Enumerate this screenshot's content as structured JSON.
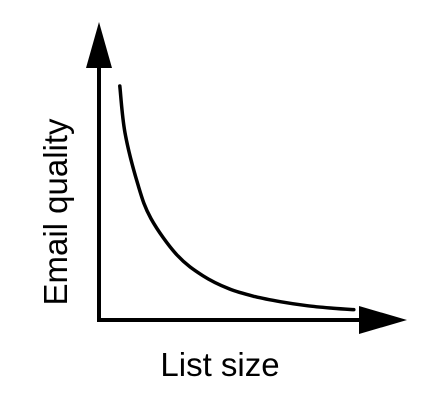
{
  "chart_data": {
    "type": "line",
    "title": "",
    "xlabel": "List size",
    "ylabel": "Email quality",
    "grid": false,
    "xlim": [
      0,
      10
    ],
    "ylim": [
      0,
      10
    ],
    "series": [
      {
        "x": [
          0.8,
          1.0,
          1.5,
          2.0,
          3.0,
          4.0,
          5.0,
          6.0,
          7.0,
          8.0,
          9.0,
          9.8
        ],
        "values": [
          9.0,
          7.2,
          5.2,
          3.9,
          2.5,
          1.7,
          1.2,
          0.9,
          0.7,
          0.55,
          0.45,
          0.4
        ]
      }
    ],
    "colors": {
      "axis": "#000000",
      "line": "#000000",
      "background": "#ffffff"
    }
  }
}
